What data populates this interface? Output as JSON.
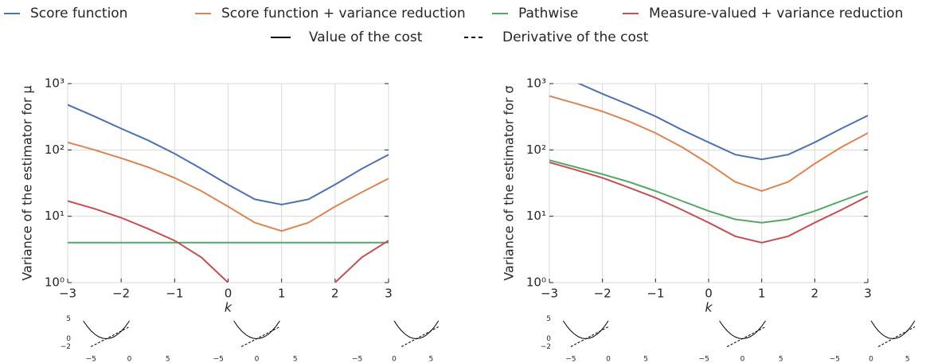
{
  "legend_styles": [
    {
      "name": "Value of the cost",
      "style": "solid"
    },
    {
      "name": "Derivative of the cost",
      "style": "dashed"
    }
  ],
  "chart_data": [
    {
      "type": "line",
      "ylabel": "Variance of the estimator for μ",
      "xlabel": "k",
      "yscale": "log",
      "grid": true,
      "x": [
        -3,
        -2.5,
        -2,
        -1.5,
        -1,
        -0.5,
        0,
        0.5,
        1,
        1.5,
        2,
        2.5,
        3
      ],
      "xlim": [
        -3,
        3
      ],
      "xticks": [
        {
          "value": -3,
          "label": "−3"
        },
        {
          "value": -2,
          "label": "−2"
        },
        {
          "value": -1,
          "label": "−1"
        },
        0,
        1,
        2,
        3
      ],
      "ylim": [
        1,
        1000
      ],
      "yticks": [
        {
          "value": 1,
          "label": "10⁰"
        },
        {
          "value": 10,
          "label": "10¹"
        },
        {
          "value": 100,
          "label": "10²"
        },
        {
          "value": 1000,
          "label": "10³"
        }
      ],
      "series": [
        {
          "name": "Score function",
          "color": "#4c72b0",
          "values": [
            480,
            320,
            210,
            140,
            88,
            52,
            30,
            18,
            15,
            18,
            30,
            52,
            85
          ]
        },
        {
          "name": "Score function + variance reduction",
          "color": "#dd8452",
          "values": [
            130,
            100,
            75,
            55,
            38,
            24,
            14,
            8,
            6,
            8,
            14,
            23,
            37
          ]
        },
        {
          "name": "Pathwise",
          "color": "#55a868",
          "values": [
            4,
            4,
            4,
            4,
            4,
            4,
            4,
            4,
            4,
            4,
            4,
            4,
            4
          ]
        },
        {
          "name": "Measure-valued + variance reduction",
          "color": "#c44e52",
          "values": [
            17,
            13,
            9.5,
            6.5,
            4.3,
            2.4,
            1,
            null,
            null,
            null,
            1,
            2.4,
            4.3
          ]
        }
      ]
    },
    {
      "type": "line",
      "ylabel": "Variance of the estimator for σ",
      "xlabel": "k",
      "yscale": "log",
      "grid": true,
      "x": [
        -3,
        -2.5,
        -2,
        -1.5,
        -1,
        -0.5,
        0,
        0.5,
        1,
        1.5,
        2,
        2.5,
        3
      ],
      "xlim": [
        -3,
        3
      ],
      "xticks": [
        {
          "value": -3,
          "label": "−3"
        },
        {
          "value": -2,
          "label": "−2"
        },
        {
          "value": -1,
          "label": "−1"
        },
        0,
        1,
        2,
        3
      ],
      "ylim": [
        1,
        1000
      ],
      "yticks": [
        {
          "value": 1,
          "label": "10⁰"
        },
        {
          "value": 10,
          "label": "10¹"
        },
        {
          "value": 100,
          "label": "10²"
        },
        {
          "value": 1000,
          "label": "10³"
        }
      ],
      "series": [
        {
          "name": "Score function",
          "color": "#4c72b0",
          "values": [
            1500,
            1050,
            700,
            480,
            320,
            200,
            130,
            85,
            72,
            85,
            130,
            210,
            330
          ]
        },
        {
          "name": "Score function + variance reduction",
          "color": "#dd8452",
          "values": [
            650,
            500,
            380,
            270,
            180,
            110,
            62,
            33,
            24,
            33,
            62,
            110,
            180
          ]
        },
        {
          "name": "Pathwise",
          "color": "#55a868",
          "values": [
            70,
            55,
            43,
            33,
            24,
            17,
            12,
            9,
            8,
            9,
            12,
            17,
            24
          ]
        },
        {
          "name": "Measure-valued + variance reduction",
          "color": "#c44e52",
          "values": [
            65,
            50,
            38,
            27,
            19,
            12.5,
            8,
            5,
            4,
            5,
            8,
            12.5,
            20
          ]
        }
      ]
    },
    {
      "type": "inset",
      "x": [
        -6,
        -5.5,
        -5,
        -4.5,
        -4,
        -3.5,
        -3,
        -2.5,
        -2,
        -1.5,
        -1,
        -0.5,
        0
      ],
      "xlim": [
        -7,
        7
      ],
      "ylim": [
        -2.5,
        5.5
      ],
      "xticks": [
        {
          "value": -5,
          "label": "−5"
        },
        0,
        5
      ],
      "yticks": [
        {
          "value": -2,
          "label": "−2"
        },
        0,
        5
      ],
      "series": [
        {
          "style": "solid",
          "values": [
            4.5,
            3.125,
            2,
            1.125,
            0.5,
            0.125,
            0,
            0.125,
            0.5,
            1.125,
            2,
            3.125,
            4.5
          ]
        },
        {
          "style": "dashed",
          "values": [
            null,
            null,
            -2,
            -1.5,
            -1,
            -0.5,
            0,
            0.5,
            1,
            1.5,
            2,
            2.5,
            3
          ]
        }
      ]
    },
    {
      "type": "inset",
      "x": [
        -3,
        -2.5,
        -2,
        -1.5,
        -1,
        -0.5,
        0,
        0.5,
        1,
        1.5,
        2,
        2.5,
        3
      ],
      "xlim": [
        -7,
        7
      ],
      "ylim": [
        -2.5,
        5.5
      ],
      "xticks": [
        {
          "value": -5,
          "label": "−5"
        },
        0,
        5
      ],
      "series": [
        {
          "style": "solid",
          "values": [
            4.5,
            3.125,
            2,
            1.125,
            0.5,
            0.125,
            0,
            0.125,
            0.5,
            1.125,
            2,
            3.125,
            4.5
          ]
        },
        {
          "style": "dashed",
          "values": [
            null,
            null,
            -2,
            -1.5,
            -1,
            -0.5,
            0,
            0.5,
            1,
            1.5,
            2,
            2.5,
            3
          ]
        }
      ]
    },
    {
      "type": "inset",
      "x": [
        0,
        0.5,
        1,
        1.5,
        2,
        2.5,
        3,
        3.5,
        4,
        4.5,
        5,
        5.5,
        6
      ],
      "xlim": [
        -7,
        7
      ],
      "ylim": [
        -2.5,
        5.5
      ],
      "xticks": [
        {
          "value": -5,
          "label": "−5"
        },
        0,
        5
      ],
      "series": [
        {
          "style": "solid",
          "values": [
            4.5,
            3.125,
            2,
            1.125,
            0.5,
            0.125,
            0,
            0.125,
            0.5,
            1.125,
            2,
            3.125,
            4.5
          ]
        },
        {
          "style": "dashed",
          "values": [
            null,
            null,
            -2,
            -1.5,
            -1,
            -0.5,
            0,
            0.5,
            1,
            1.5,
            2,
            2.5,
            3
          ]
        }
      ]
    },
    {
      "type": "inset",
      "x": [
        -6,
        -5.5,
        -5,
        -4.5,
        -4,
        -3.5,
        -3,
        -2.5,
        -2,
        -1.5,
        -1,
        -0.5,
        0
      ],
      "xlim": [
        -7,
        7
      ],
      "ylim": [
        -2.5,
        5.5
      ],
      "xticks": [
        {
          "value": -5,
          "label": "−5"
        },
        0,
        5
      ],
      "yticks": [
        {
          "value": -2,
          "label": "−2"
        },
        0,
        5
      ],
      "series": [
        {
          "style": "solid",
          "values": [
            4.5,
            3.125,
            2,
            1.125,
            0.5,
            0.125,
            0,
            0.125,
            0.5,
            1.125,
            2,
            3.125,
            4.5
          ]
        },
        {
          "style": "dashed",
          "values": [
            null,
            null,
            -2,
            -1.5,
            -1,
            -0.5,
            0,
            0.5,
            1,
            1.5,
            2,
            2.5,
            3
          ]
        }
      ]
    },
    {
      "type": "inset",
      "x": [
        -3,
        -2.5,
        -2,
        -1.5,
        -1,
        -0.5,
        0,
        0.5,
        1,
        1.5,
        2,
        2.5,
        3
      ],
      "xlim": [
        -7,
        7
      ],
      "ylim": [
        -2.5,
        5.5
      ],
      "xticks": [
        {
          "value": -5,
          "label": "−5"
        },
        0,
        5
      ],
      "series": [
        {
          "style": "solid",
          "values": [
            4.5,
            3.125,
            2,
            1.125,
            0.5,
            0.125,
            0,
            0.125,
            0.5,
            1.125,
            2,
            3.125,
            4.5
          ]
        },
        {
          "style": "dashed",
          "values": [
            null,
            null,
            -2,
            -1.5,
            -1,
            -0.5,
            0,
            0.5,
            1,
            1.5,
            2,
            2.5,
            3
          ]
        }
      ]
    },
    {
      "type": "inset",
      "x": [
        0,
        0.5,
        1,
        1.5,
        2,
        2.5,
        3,
        3.5,
        4,
        4.5,
        5,
        5.5,
        6
      ],
      "xlim": [
        -7,
        7
      ],
      "ylim": [
        -2.5,
        5.5
      ],
      "xticks": [
        {
          "value": -5,
          "label": "−5"
        },
        0,
        5
      ],
      "series": [
        {
          "style": "solid",
          "values": [
            4.5,
            3.125,
            2,
            1.125,
            0.5,
            0.125,
            0,
            0.125,
            0.5,
            1.125,
            2,
            3.125,
            4.5
          ]
        },
        {
          "style": "dashed",
          "values": [
            null,
            null,
            -2,
            -1.5,
            -1,
            -0.5,
            0,
            0.5,
            1,
            1.5,
            2,
            2.5,
            3
          ]
        }
      ]
    }
  ]
}
